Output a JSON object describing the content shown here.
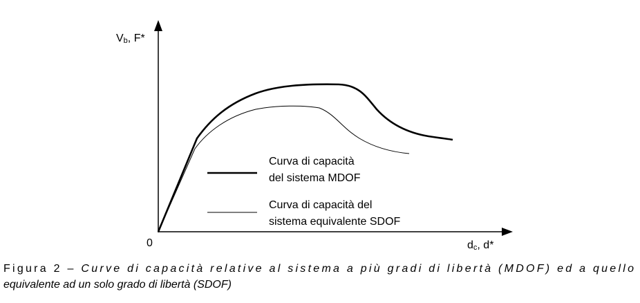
{
  "figure": {
    "y_axis_label": {
      "main": "V",
      "sub": "b",
      "rest": ", F*"
    },
    "x_axis_label": {
      "main": "d",
      "sub": "c",
      "rest": ", d*"
    },
    "origin": "0",
    "legend": [
      {
        "lines": [
          "Curva di capacità",
          "del sistema MDOF"
        ]
      },
      {
        "lines": [
          "Curva di capacità del",
          "sistema equivalente SDOF"
        ]
      }
    ],
    "caption": {
      "label": "Figura 2 – ",
      "lines": [
        "Curve di capacità relative al sistema a più gradi di libertà (MDOF) ed a quello",
        "equivalente ad un solo grado di libertà (SDOF)"
      ]
    }
  }
}
